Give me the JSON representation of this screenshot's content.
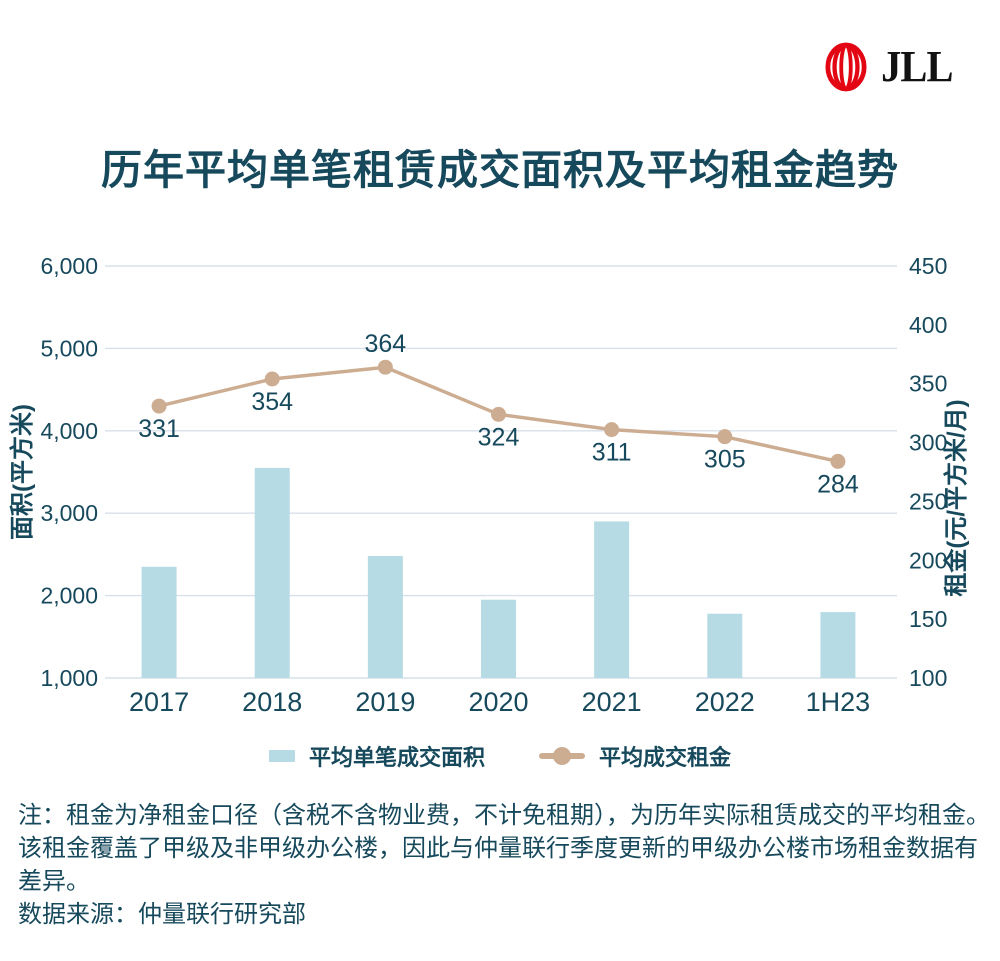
{
  "brand": {
    "logo_text": "JLL"
  },
  "title": "历年平均单笔租赁成交面积及平均租金趋势",
  "colors": {
    "text": "#17495C",
    "bar": "#B6DBE4",
    "line": "#CDAD92",
    "grid": "#D8E0EA",
    "logo_red": "#E30613",
    "background": "#FFFFFF"
  },
  "chart_data": {
    "type": "bar+line",
    "categories": [
      "2017",
      "2018",
      "2019",
      "2020",
      "2021",
      "2022",
      "1H23"
    ],
    "series": [
      {
        "name": "平均单笔成交面积",
        "type": "bar",
        "axis": "left",
        "color": "#B6DBE4",
        "values": [
          2350,
          3550,
          2480,
          1950,
          2900,
          1780,
          1800
        ]
      },
      {
        "name": "平均成交租金",
        "type": "line",
        "axis": "right",
        "color": "#CDAD92",
        "values": [
          331,
          354,
          364,
          324,
          311,
          305,
          284
        ],
        "data_labels": true,
        "label_placement": [
          "below",
          "below",
          "above",
          "below",
          "below",
          "below",
          "below"
        ]
      }
    ],
    "left_axis": {
      "title": "面积(平方米)",
      "min": 1000,
      "max": 6000,
      "step": 1000,
      "format": "comma"
    },
    "right_axis": {
      "title": "租金(元/平方米/月)",
      "min": 100,
      "max": 450,
      "step": 50
    },
    "grid": "horizontal",
    "legend_position": "bottom"
  },
  "notes": [
    "注：租金为净租金口径（含税不含物业费，不计免租期），为历年实际租赁成交的平均租金。",
    "该租金覆盖了甲级及非甲级办公楼，因此与仲量联行季度更新的甲级办公楼市场租金数据有",
    "差异。"
  ],
  "source": "数据来源：仲量联行研究部"
}
